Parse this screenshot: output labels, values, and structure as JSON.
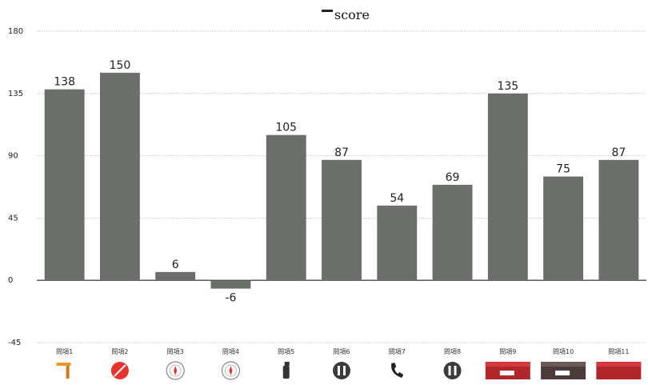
{
  "chart_data": {
    "type": "bar",
    "categories": [
      "問項1",
      "問項2",
      "問項3",
      "問項4",
      "問項5",
      "問項6",
      "問項7",
      "問項8",
      "問項9",
      "問項10",
      "問項11"
    ],
    "series": [
      {
        "name": "score",
        "values": [
          138,
          150,
          6,
          -6,
          105,
          87,
          54,
          69,
          135,
          75,
          87
        ]
      }
    ],
    "ylim": [
      -45,
      180
    ],
    "yticks": [
      -45,
      0,
      45,
      90,
      135,
      180
    ],
    "grid": true,
    "legend": "top",
    "bar_color": "#6b6e6b",
    "category_icons": [
      "hammer-icon",
      "no-smoking-icon",
      "compass-icon",
      "compass-icon",
      "fire-extinguisher-icon",
      "restroom-icon",
      "phone-icon",
      "family-restroom-icon",
      "exit-sign-icon",
      "exit-sign-icon",
      "exit-sign-icon"
    ]
  }
}
